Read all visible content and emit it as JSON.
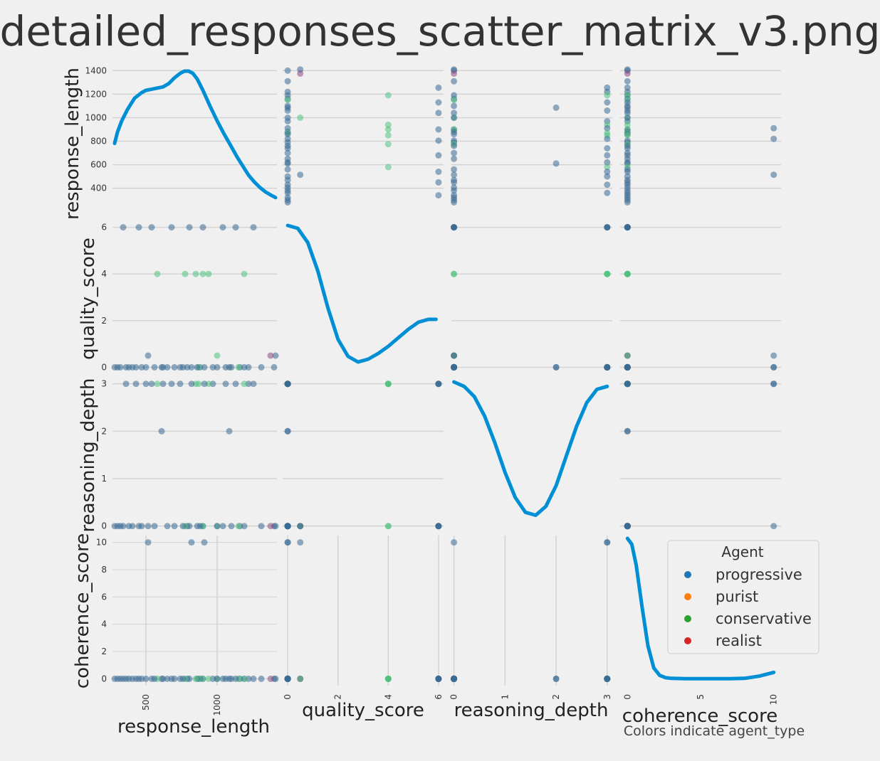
{
  "chart_data": {
    "type": "scatter",
    "title": "detailed_responses_scatter_matrix_v3.png",
    "variables": [
      "response_length",
      "quality_score",
      "reasoning_depth",
      "coherence_score"
    ],
    "axis_labels": {
      "response_length": "response_length",
      "quality_score": "quality_score",
      "reasoning_depth": "reasoning_depth",
      "coherence_score": "coherence_score"
    },
    "ranges": {
      "response_length": [
        265,
        1420
      ],
      "quality_score": [
        -0.2,
        6.2
      ],
      "reasoning_depth": [
        -0.05,
        3.1
      ],
      "coherence_score": [
        -0.5,
        10.5
      ]
    },
    "ticks": {
      "response_length_y": [
        400,
        600,
        800,
        1000,
        1200,
        1400
      ],
      "response_length_x": [
        500,
        1000
      ],
      "quality_score": [
        0,
        2,
        4,
        6
      ],
      "reasoning_depth": [
        0,
        1,
        2,
        3
      ],
      "coherence_score_y": [
        0,
        2,
        4,
        6,
        8,
        10
      ],
      "coherence_score_x": [
        0,
        5,
        10
      ]
    },
    "legend": {
      "title": "Agent",
      "placement": "lower-right",
      "entries": [
        {
          "name": "progressive",
          "color": "#1f77b4"
        },
        {
          "name": "purist",
          "color": "#ff7f0e"
        },
        {
          "name": "conservative",
          "color": "#2ca02c"
        },
        {
          "name": "realist",
          "color": "#d62728"
        }
      ]
    },
    "point_colors": {
      "progressive": "#3a6b94",
      "conservative": "#4fc27e",
      "realist": "#8c4a82"
    },
    "kde_color": "#008fd5",
    "caption": "Colors indicate agent_type",
    "grid": true,
    "points": [
      {
        "agent": "progressive",
        "response_length": 1400,
        "quality_score": 0,
        "reasoning_depth": 0,
        "coherence_score": 0
      },
      {
        "agent": "progressive",
        "response_length": 1410,
        "quality_score": 0.5,
        "reasoning_depth": 0,
        "coherence_score": 0
      },
      {
        "agent": "realist",
        "response_length": 1375,
        "quality_score": 0.5,
        "reasoning_depth": 0,
        "coherence_score": 0
      },
      {
        "agent": "progressive",
        "response_length": 1310,
        "quality_score": 0,
        "reasoning_depth": 0,
        "coherence_score": 0
      },
      {
        "agent": "progressive",
        "response_length": 1255,
        "quality_score": 6,
        "reasoning_depth": 3,
        "coherence_score": 0
      },
      {
        "agent": "progressive",
        "response_length": 1220,
        "quality_score": 0,
        "reasoning_depth": 3,
        "coherence_score": 0
      },
      {
        "agent": "progressive",
        "response_length": 1190,
        "quality_score": 0,
        "reasoning_depth": 0,
        "coherence_score": 0
      },
      {
        "agent": "conservative",
        "response_length": 1190,
        "quality_score": 4,
        "reasoning_depth": 3,
        "coherence_score": 0
      },
      {
        "agent": "progressive",
        "response_length": 1160,
        "quality_score": 0,
        "reasoning_depth": 0,
        "coherence_score": 0
      },
      {
        "agent": "conservative",
        "response_length": 1150,
        "quality_score": 0,
        "reasoning_depth": 0,
        "coherence_score": 0
      },
      {
        "agent": "progressive",
        "response_length": 1130,
        "quality_score": 6,
        "reasoning_depth": 3,
        "coherence_score": 0
      },
      {
        "agent": "progressive",
        "response_length": 1100,
        "quality_score": 0,
        "reasoning_depth": 0,
        "coherence_score": 0
      },
      {
        "agent": "progressive",
        "response_length": 1085,
        "quality_score": 0,
        "reasoning_depth": 2,
        "coherence_score": 0
      },
      {
        "agent": "progressive",
        "response_length": 1060,
        "quality_score": 0,
        "reasoning_depth": 3,
        "coherence_score": 0
      },
      {
        "agent": "progressive",
        "response_length": 1040,
        "quality_score": 6,
        "reasoning_depth": 0,
        "coherence_score": 0
      },
      {
        "agent": "conservative",
        "response_length": 1000,
        "quality_score": 0.5,
        "reasoning_depth": 0,
        "coherence_score": 0
      },
      {
        "agent": "progressive",
        "response_length": 1000,
        "quality_score": 0,
        "reasoning_depth": 0,
        "coherence_score": 0
      },
      {
        "agent": "progressive",
        "response_length": 970,
        "quality_score": 0,
        "reasoning_depth": 3,
        "coherence_score": 0
      },
      {
        "agent": "conservative",
        "response_length": 940,
        "quality_score": 4,
        "reasoning_depth": 3,
        "coherence_score": 0
      },
      {
        "agent": "progressive",
        "response_length": 910,
        "quality_score": 0,
        "reasoning_depth": 3,
        "coherence_score": 10
      },
      {
        "agent": "progressive",
        "response_length": 900,
        "quality_score": 6,
        "reasoning_depth": 0,
        "coherence_score": 0
      },
      {
        "agent": "conservative",
        "response_length": 900,
        "quality_score": 4,
        "reasoning_depth": 0,
        "coherence_score": 0
      },
      {
        "agent": "progressive",
        "response_length": 880,
        "quality_score": 0,
        "reasoning_depth": 0,
        "coherence_score": 0
      },
      {
        "agent": "conservative",
        "response_length": 870,
        "quality_score": 0,
        "reasoning_depth": 3,
        "coherence_score": 0
      },
      {
        "agent": "progressive",
        "response_length": 860,
        "quality_score": 0,
        "reasoning_depth": 0,
        "coherence_score": 0
      },
      {
        "agent": "conservative",
        "response_length": 850,
        "quality_score": 4,
        "reasoning_depth": 3,
        "coherence_score": 0
      },
      {
        "agent": "progressive",
        "response_length": 820,
        "quality_score": 0,
        "reasoning_depth": 3,
        "coherence_score": 10
      },
      {
        "agent": "progressive",
        "response_length": 805,
        "quality_score": 6,
        "reasoning_depth": 0,
        "coherence_score": 0
      },
      {
        "agent": "progressive",
        "response_length": 790,
        "quality_score": 0,
        "reasoning_depth": 0,
        "coherence_score": 0
      },
      {
        "agent": "conservative",
        "response_length": 775,
        "quality_score": 4,
        "reasoning_depth": 0,
        "coherence_score": 0
      },
      {
        "agent": "progressive",
        "response_length": 760,
        "quality_score": 0,
        "reasoning_depth": 0,
        "coherence_score": 0
      },
      {
        "agent": "progressive",
        "response_length": 740,
        "quality_score": 0,
        "reasoning_depth": 3,
        "coherence_score": 0
      },
      {
        "agent": "progressive",
        "response_length": 700,
        "quality_score": 0,
        "reasoning_depth": 0,
        "coherence_score": 0
      },
      {
        "agent": "progressive",
        "response_length": 680,
        "quality_score": 6,
        "reasoning_depth": 3,
        "coherence_score": 0
      },
      {
        "agent": "progressive",
        "response_length": 650,
        "quality_score": 0,
        "reasoning_depth": 0,
        "coherence_score": 0
      },
      {
        "agent": "progressive",
        "response_length": 620,
        "quality_score": 0,
        "reasoning_depth": 3,
        "coherence_score": 0
      },
      {
        "agent": "progressive",
        "response_length": 610,
        "quality_score": 0,
        "reasoning_depth": 2,
        "coherence_score": 0
      },
      {
        "agent": "conservative",
        "response_length": 580,
        "quality_score": 4,
        "reasoning_depth": 3,
        "coherence_score": 0
      },
      {
        "agent": "progressive",
        "response_length": 560,
        "quality_score": 0,
        "reasoning_depth": 0,
        "coherence_score": 0
      },
      {
        "agent": "progressive",
        "response_length": 540,
        "quality_score": 6,
        "reasoning_depth": 3,
        "coherence_score": 0
      },
      {
        "agent": "progressive",
        "response_length": 515,
        "quality_score": 0.5,
        "reasoning_depth": 0,
        "coherence_score": 10
      },
      {
        "agent": "progressive",
        "response_length": 500,
        "quality_score": 0,
        "reasoning_depth": 3,
        "coherence_score": 0
      },
      {
        "agent": "progressive",
        "response_length": 470,
        "quality_score": 0,
        "reasoning_depth": 0,
        "coherence_score": 0
      },
      {
        "agent": "progressive",
        "response_length": 450,
        "quality_score": 6,
        "reasoning_depth": 0,
        "coherence_score": 0
      },
      {
        "agent": "progressive",
        "response_length": 430,
        "quality_score": 0,
        "reasoning_depth": 3,
        "coherence_score": 0
      },
      {
        "agent": "progressive",
        "response_length": 405,
        "quality_score": 0,
        "reasoning_depth": 0,
        "coherence_score": 0
      },
      {
        "agent": "progressive",
        "response_length": 380,
        "quality_score": 0,
        "reasoning_depth": 0,
        "coherence_score": 0
      },
      {
        "agent": "progressive",
        "response_length": 360,
        "quality_score": 0,
        "reasoning_depth": 3,
        "coherence_score": 0
      },
      {
        "agent": "progressive",
        "response_length": 340,
        "quality_score": 6,
        "reasoning_depth": 0,
        "coherence_score": 0
      },
      {
        "agent": "progressive",
        "response_length": 320,
        "quality_score": 0,
        "reasoning_depth": 0,
        "coherence_score": 0
      },
      {
        "agent": "progressive",
        "response_length": 300,
        "quality_score": 0,
        "reasoning_depth": 0,
        "coherence_score": 0
      },
      {
        "agent": "progressive",
        "response_length": 280,
        "quality_score": 0,
        "reasoning_depth": 0,
        "coherence_score": 0
      }
    ],
    "kde": {
      "response_length": {
        "x": [
          280,
          300,
          330,
          370,
          420,
          470,
          500,
          540,
          580,
          620,
          660,
          700,
          740,
          770,
          800,
          830,
          860,
          900,
          950,
          1000,
          1050,
          1100,
          1140,
          1180,
          1220,
          1260,
          1300,
          1340,
          1380,
          1410
        ],
        "density": [
          0.5,
          0.6,
          0.7,
          0.8,
          0.9,
          0.95,
          0.97,
          0.98,
          0.99,
          1.0,
          1.03,
          1.08,
          1.12,
          1.14,
          1.14,
          1.12,
          1.07,
          0.97,
          0.83,
          0.7,
          0.58,
          0.47,
          0.38,
          0.3,
          0.22,
          0.16,
          0.11,
          0.07,
          0.04,
          0.02
        ]
      },
      "quality_score": {
        "x": [
          0.0,
          0.4,
          0.8,
          1.2,
          1.6,
          2.0,
          2.4,
          2.8,
          3.2,
          3.6,
          4.0,
          4.4,
          4.8,
          5.2,
          5.6,
          5.9
        ],
        "density": [
          1.0,
          0.98,
          0.88,
          0.68,
          0.42,
          0.2,
          0.08,
          0.04,
          0.06,
          0.1,
          0.15,
          0.21,
          0.27,
          0.32,
          0.34,
          0.34
        ]
      },
      "reasoning_depth": {
        "x": [
          0.0,
          0.2,
          0.4,
          0.6,
          0.8,
          1.0,
          1.2,
          1.4,
          1.6,
          1.8,
          2.0,
          2.2,
          2.4,
          2.6,
          2.8,
          3.0
        ],
        "density": [
          0.96,
          0.93,
          0.86,
          0.73,
          0.55,
          0.35,
          0.18,
          0.08,
          0.06,
          0.12,
          0.26,
          0.46,
          0.66,
          0.82,
          0.91,
          0.93
        ]
      },
      "coherence_score": {
        "x": [
          0.0,
          0.3,
          0.6,
          1.0,
          1.4,
          1.8,
          2.2,
          2.6,
          3.0,
          4.0,
          5.0,
          6.0,
          7.0,
          8.0,
          9.0,
          10.0
        ],
        "density": [
          0.96,
          0.92,
          0.78,
          0.5,
          0.24,
          0.09,
          0.04,
          0.025,
          0.02,
          0.018,
          0.018,
          0.018,
          0.018,
          0.02,
          0.035,
          0.06
        ]
      }
    }
  }
}
